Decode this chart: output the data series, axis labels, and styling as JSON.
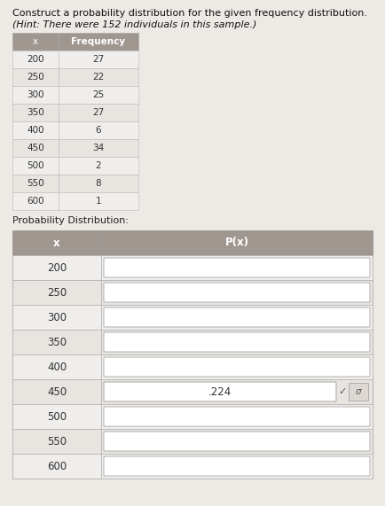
{
  "title": "Construct a probability distribution for the given frequency distribution.",
  "hint": "(Hint: There were 152 individuals in this sample.)",
  "freq_headers": [
    "x",
    "Frequency"
  ],
  "freq_rows": [
    [
      200,
      27
    ],
    [
      250,
      22
    ],
    [
      300,
      25
    ],
    [
      350,
      27
    ],
    [
      400,
      6
    ],
    [
      450,
      34
    ],
    [
      500,
      2
    ],
    [
      550,
      8
    ],
    [
      600,
      1
    ]
  ],
  "prob_headers": [
    "x",
    "P(x)"
  ],
  "prob_rows": [
    200,
    250,
    300,
    350,
    400,
    450,
    500,
    550,
    600
  ],
  "filled_row_index": 5,
  "filled_value": ".224",
  "total": 152,
  "bg": "#ede9e5",
  "header_color": "#a09690",
  "row_color_a": "#f0eeec",
  "row_color_b": "#e8e4e0",
  "prob_bg": "#d8d0c8",
  "input_fill": "#ffffff",
  "input_edge": "#b0b0b0",
  "text_color": "#333333",
  "header_text": "#ffffff",
  "prob_label_color": "#222222",
  "title_color": "#111111"
}
